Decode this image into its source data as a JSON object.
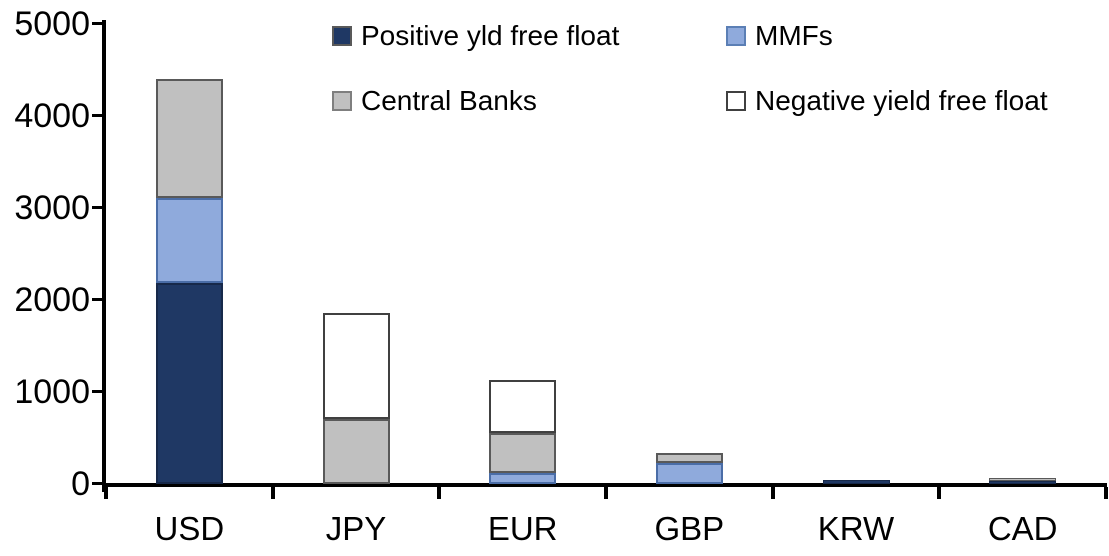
{
  "chart_data": {
    "type": "bar",
    "stacked": true,
    "title": "",
    "xlabel": "",
    "ylabel": "",
    "categories": [
      "USD",
      "JPY",
      "EUR",
      "GBP",
      "KRW",
      "CAD"
    ],
    "series": [
      {
        "name": "Positive yld free float",
        "fill": "#1F3864",
        "border": "#17294A",
        "swatch_border": "#595959",
        "values": [
          2180,
          0,
          0,
          0,
          45,
          30
        ]
      },
      {
        "name": "MMFs",
        "fill": "#8FAADC",
        "border": "#4A6DA7",
        "swatch_border": "#5B7FB5",
        "values": [
          930,
          0,
          120,
          230,
          0,
          0
        ]
      },
      {
        "name": "Central Banks",
        "fill": "#C0C0C0",
        "border": "#595959",
        "swatch_border": "#7F7F7F",
        "values": [
          1290,
          710,
          430,
          110,
          0,
          35
        ]
      },
      {
        "name": "Negative yield free float",
        "fill": "#FFFFFF",
        "border": "#404040",
        "swatch_border": "#404040",
        "values": [
          0,
          1150,
          580,
          0,
          0,
          0
        ]
      }
    ],
    "ylim": [
      0,
      5000
    ],
    "yticks": [
      0,
      1000,
      2000,
      3000,
      4000,
      5000
    ],
    "grid": false,
    "legend_position": "top",
    "axis_color": "#000000",
    "background_color": "#FFFFFF"
  }
}
